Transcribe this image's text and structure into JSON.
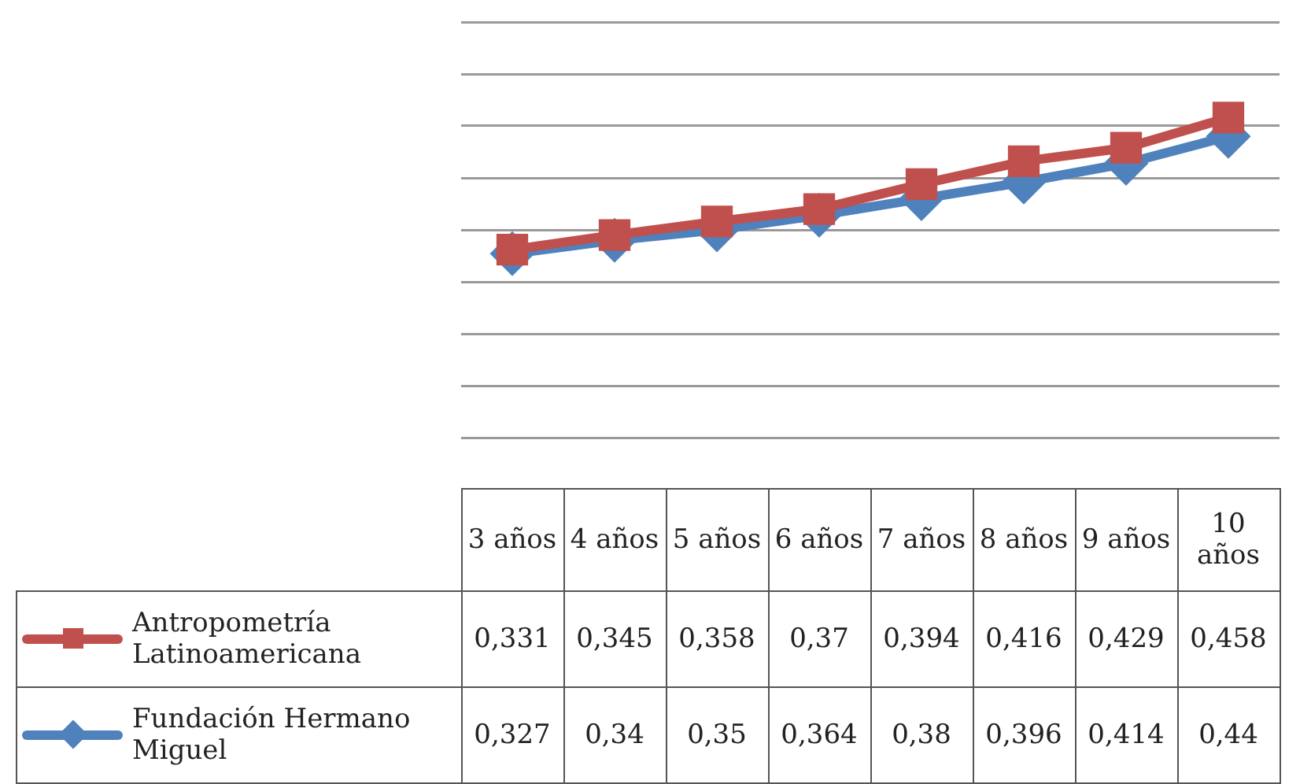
{
  "chart_data": {
    "type": "line",
    "categories": [
      "3 años",
      "4 años",
      "5 años",
      "6 años",
      "7 años",
      "8 años",
      "9 años",
      "10 años"
    ],
    "series": [
      {
        "name": "Antropometría Latinoamericana",
        "color": "#c0504d",
        "marker": "square",
        "values": [
          0.331,
          0.345,
          0.358,
          0.37,
          0.394,
          0.416,
          0.429,
          0.458
        ],
        "value_labels": [
          "0,331",
          "0,345",
          "0,358",
          "0,37",
          "0,394",
          "0,416",
          "0,429",
          "0,458"
        ]
      },
      {
        "name": "Fundación Hermano Miguel",
        "color": "#4f81bd",
        "marker": "diamond",
        "values": [
          0.327,
          0.34,
          0.35,
          0.364,
          0.38,
          0.396,
          0.414,
          0.44
        ],
        "value_labels": [
          "0,327",
          "0,34",
          "0,35",
          "0,364",
          "0,38",
          "0,396",
          "0,414",
          "0,44"
        ]
      }
    ],
    "tick_labels": "x",
    "grid": "y",
    "legend": "bottom",
    "line_style": "solid"
  }
}
